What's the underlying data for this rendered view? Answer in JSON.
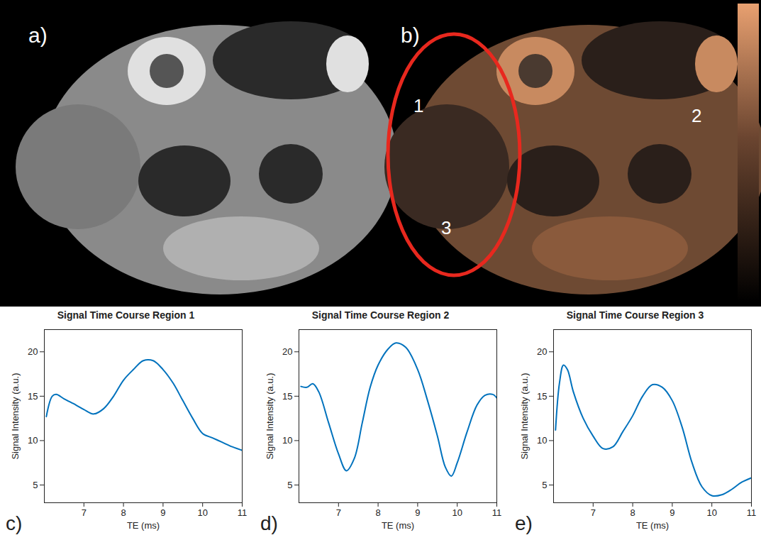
{
  "images": [
    {
      "panel": "a)"
    },
    {
      "panel": "b)",
      "region_labels": [
        "1",
        "2",
        "3"
      ]
    }
  ],
  "chart_data": [
    {
      "type": "line",
      "panel": "c)",
      "title": "Signal Time Course Region 1",
      "x_label": "TE (ms)",
      "y_label": "Signal Intensity (a.u.)",
      "x": [
        6.05,
        6.2,
        6.3,
        6.5,
        6.8,
        7.0,
        7.25,
        7.5,
        7.75,
        8.0,
        8.25,
        8.5,
        8.75,
        9.0,
        9.25,
        9.5,
        9.75,
        10.0,
        10.25,
        10.5,
        10.75,
        11.0
      ],
      "values": [
        12.7,
        15.0,
        15.2,
        14.7,
        14.0,
        13.5,
        13.0,
        13.6,
        15.0,
        16.8,
        18.0,
        19.0,
        19.0,
        18.0,
        16.5,
        14.5,
        12.5,
        10.8,
        10.3,
        9.8,
        9.3,
        8.9
      ],
      "color": "#0072bd",
      "xlim": [
        6,
        11
      ],
      "xticks": [
        7,
        8,
        9,
        10,
        11
      ],
      "ylim": [
        3,
        22.5
      ],
      "yticks": [
        5,
        10,
        15,
        20
      ],
      "grid": false
    },
    {
      "type": "line",
      "panel": "d)",
      "title": "Signal Time Course Region 2",
      "x_label": "TE (ms)",
      "y_label": "Signal Intensity (a.u.)",
      "x": [
        6.05,
        6.2,
        6.35,
        6.5,
        6.75,
        7.0,
        7.2,
        7.4,
        7.6,
        7.8,
        8.0,
        8.25,
        8.45,
        8.7,
        9.0,
        9.25,
        9.5,
        9.7,
        9.85,
        10.0,
        10.25,
        10.5,
        10.7,
        10.9,
        11.0
      ],
      "values": [
        16.1,
        16.0,
        16.4,
        15.5,
        12.0,
        8.5,
        6.6,
        8.0,
        12.0,
        16.0,
        18.5,
        20.3,
        21.0,
        20.5,
        18.0,
        14.5,
        10.5,
        7.0,
        6.0,
        7.5,
        11.0,
        14.0,
        15.1,
        15.2,
        14.8
      ],
      "color": "#0072bd",
      "xlim": [
        6,
        11
      ],
      "xticks": [
        7,
        8,
        9,
        10,
        11
      ],
      "ylim": [
        3,
        22.5
      ],
      "yticks": [
        5,
        10,
        15,
        20
      ],
      "grid": false
    },
    {
      "type": "line",
      "panel": "e)",
      "title": "Signal Time Course Region 3",
      "x_label": "TE (ms)",
      "y_label": "Signal Intensity (a.u.)",
      "x": [
        6.05,
        6.15,
        6.25,
        6.35,
        6.5,
        6.75,
        7.0,
        7.25,
        7.5,
        7.75,
        8.0,
        8.25,
        8.5,
        8.75,
        9.0,
        9.25,
        9.5,
        9.75,
        10.0,
        10.25,
        10.5,
        10.75,
        11.0
      ],
      "values": [
        11.2,
        16.5,
        18.5,
        18.0,
        15.5,
        12.5,
        10.5,
        9.1,
        9.3,
        11.0,
        12.8,
        15.0,
        16.3,
        16.0,
        14.5,
        11.5,
        7.5,
        4.8,
        3.8,
        3.9,
        4.5,
        5.3,
        5.8
      ],
      "color": "#0072bd",
      "xlim": [
        6,
        11
      ],
      "xticks": [
        7,
        8,
        9,
        10,
        11
      ],
      "ylim": [
        3,
        22.5
      ],
      "yticks": [
        5,
        10,
        15,
        20
      ],
      "grid": false
    }
  ]
}
